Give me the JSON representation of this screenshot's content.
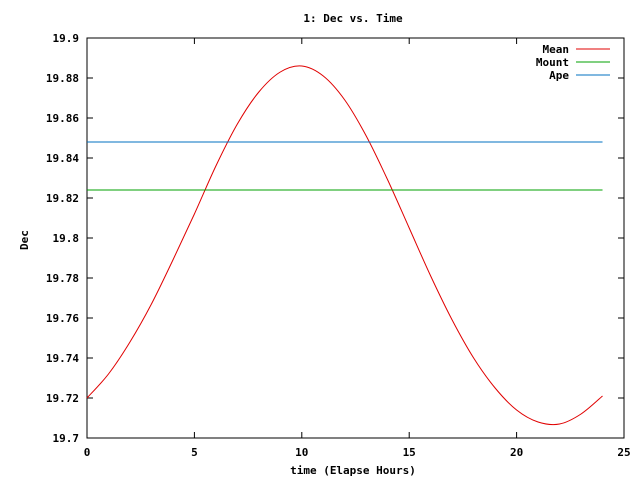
{
  "chart_data": {
    "type": "line",
    "title": "1: Dec vs. Time",
    "xlabel": "time (Elapse Hours)",
    "ylabel": "Dec",
    "xlim": [
      0,
      25
    ],
    "ylim": [
      19.7,
      19.9
    ],
    "xticks": [
      "0",
      "5",
      "10",
      "15",
      "20",
      "25"
    ],
    "yticks": [
      "19.7",
      "19.72",
      "19.74",
      "19.76",
      "19.78",
      "19.8",
      "19.82",
      "19.84",
      "19.86",
      "19.88",
      "19.9"
    ],
    "grid": false,
    "legend_position": "top-right",
    "series": [
      {
        "name": "Mean",
        "color": "#e00000",
        "x": [
          0,
          1,
          2,
          3,
          4,
          5,
          6,
          7,
          8,
          9,
          10,
          11,
          12,
          13,
          14,
          15,
          16,
          17,
          18,
          19,
          20,
          21,
          22,
          23,
          24
        ],
        "y": [
          19.72,
          19.732,
          19.748,
          19.767,
          19.789,
          19.812,
          19.836,
          19.857,
          19.873,
          19.883,
          19.886,
          19.881,
          19.869,
          19.851,
          19.829,
          19.805,
          19.781,
          19.759,
          19.74,
          19.725,
          19.714,
          19.708,
          19.707,
          19.712,
          19.721
        ]
      },
      {
        "name": "Mount",
        "color": "#00a000",
        "x": [
          0,
          24
        ],
        "y": [
          19.824,
          19.824
        ]
      },
      {
        "name": "Ape",
        "color": "#0070c0",
        "x": [
          0,
          24
        ],
        "y": [
          19.848,
          19.848
        ]
      }
    ]
  }
}
